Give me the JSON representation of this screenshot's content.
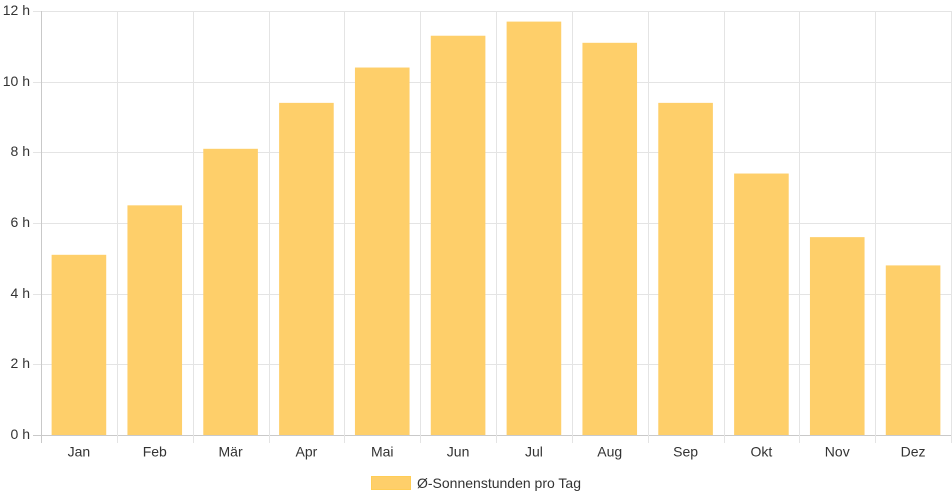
{
  "chart_data": {
    "type": "bar",
    "categories": [
      "Jan",
      "Feb",
      "Mär",
      "Apr",
      "Mai",
      "Jun",
      "Jul",
      "Aug",
      "Sep",
      "Okt",
      "Nov",
      "Dez"
    ],
    "series": [
      {
        "name": "Ø-Sonnenstunden pro Tag",
        "values": [
          5.1,
          6.5,
          8.1,
          9.4,
          10.4,
          11.3,
          11.7,
          11.1,
          9.4,
          7.4,
          5.6,
          4.8
        ],
        "color": "#fecf6a"
      }
    ],
    "y_ticks": [
      "0 h",
      "2 h",
      "4 h",
      "6 h",
      "8 h",
      "10 h",
      "12 h"
    ],
    "ylim": [
      0,
      12
    ],
    "grid": true,
    "legend_position": "bottom"
  }
}
